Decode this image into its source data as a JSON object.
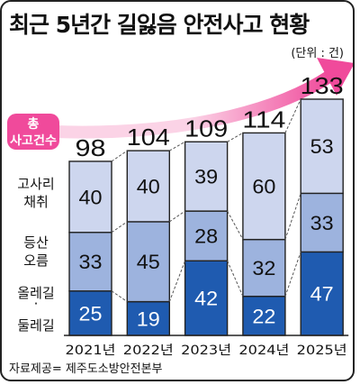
{
  "title": "최근 5년간 길잃음 안전사고 현황",
  "unit": "(단위 : 건)",
  "source": "자료제공= 제주도소방안전본부",
  "total_label_lines": [
    "총",
    "사고건수"
  ],
  "colors": {
    "trail": "#1f5bb0",
    "climbing": "#9db3de",
    "herb": "#cdd6ee",
    "outline": "#222222",
    "arrow": "#f04a9b",
    "arrow_light": "#fbd3e6"
  },
  "chart_data": {
    "type": "bar",
    "stacked": true,
    "categories": [
      "2021년",
      "2022년",
      "2023년",
      "2024년",
      "2025년"
    ],
    "series": [
      {
        "name": "올레길·둘레길",
        "label_lines": [
          "올레길",
          "·",
          "둘레길"
        ],
        "values": [
          25,
          19,
          42,
          22,
          47
        ],
        "color": "#1f5bb0",
        "text_color": "#ffffff"
      },
      {
        "name": "등산 오름",
        "label_lines": [
          "등산",
          "오름"
        ],
        "values": [
          33,
          45,
          28,
          32,
          33
        ],
        "color": "#9db3de",
        "text_color": "#111111"
      },
      {
        "name": "고사리 채취",
        "label_lines": [
          "고사리",
          "채취"
        ],
        "values": [
          40,
          40,
          39,
          60,
          53
        ],
        "color": "#cdd6ee",
        "text_color": "#111111"
      }
    ],
    "totals": [
      98,
      104,
      109,
      114,
      133
    ]
  }
}
